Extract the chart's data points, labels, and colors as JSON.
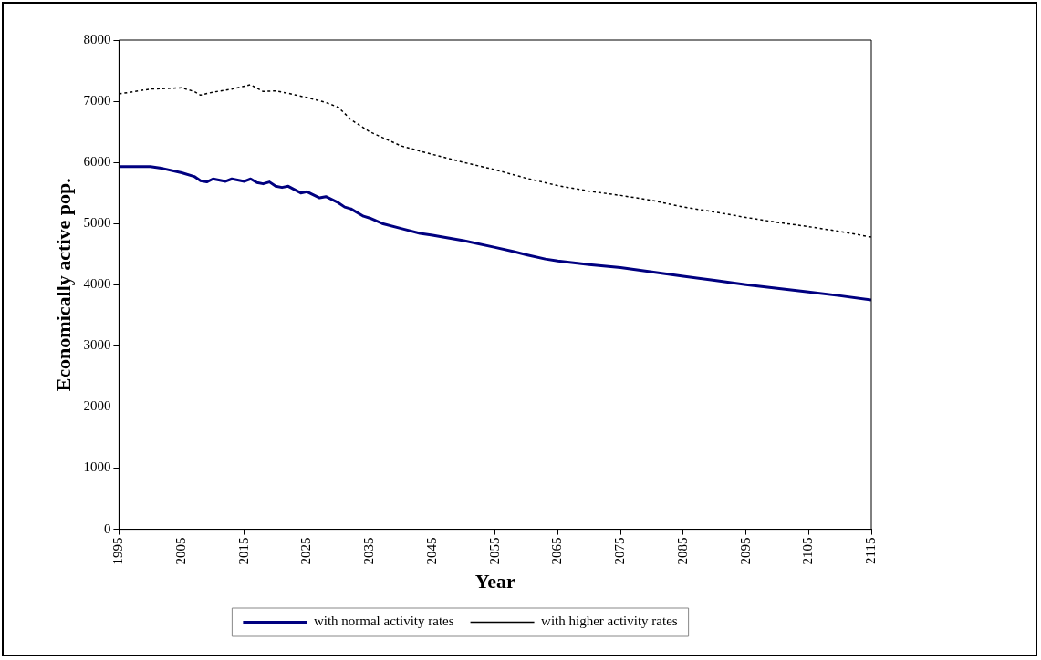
{
  "chart_data": {
    "type": "line",
    "xlabel": "Year",
    "ylabel": "Economically active pop.",
    "xlim": [
      1995,
      2115
    ],
    "xticks": [
      1995,
      2005,
      2015,
      2025,
      2035,
      2045,
      2055,
      2065,
      2075,
      2085,
      2095,
      2105,
      2115
    ],
    "ylim": [
      0,
      8000
    ],
    "yticks": [
      0,
      1000,
      2000,
      3000,
      4000,
      5000,
      6000,
      7000,
      8000
    ],
    "grid": false,
    "legend": "bottom",
    "marker": "none",
    "series": [
      {
        "name": "with normal activity rates",
        "color": "#000080",
        "line_style": "solid",
        "x": [
          1995,
          2000,
          2002,
          2005,
          2007,
          2008,
          2009,
          2010,
          2012,
          2013,
          2015,
          2016,
          2017,
          2018,
          2019,
          2020,
          2021,
          2022,
          2024,
          2025,
          2027,
          2028,
          2030,
          2031,
          2032,
          2034,
          2035,
          2037,
          2040,
          2043,
          2045,
          2050,
          2055,
          2058,
          2060,
          2063,
          2065,
          2070,
          2075,
          2080,
          2085,
          2090,
          2095,
          2100,
          2105,
          2110,
          2115
        ],
        "values": [
          5930,
          5930,
          5900,
          5830,
          5770,
          5700,
          5680,
          5730,
          5690,
          5730,
          5690,
          5730,
          5670,
          5650,
          5680,
          5610,
          5590,
          5610,
          5500,
          5520,
          5420,
          5440,
          5340,
          5270,
          5240,
          5120,
          5090,
          5000,
          4920,
          4840,
          4810,
          4720,
          4610,
          4540,
          4490,
          4420,
          4390,
          4330,
          4280,
          4210,
          4140,
          4070,
          4000,
          3940,
          3880,
          3820,
          3750
        ]
      },
      {
        "name": "with higher activity rates",
        "color": "#000000",
        "line_style": "dotted",
        "x": [
          1995,
          2000,
          2005,
          2007,
          2008,
          2010,
          2013,
          2016,
          2018,
          2020,
          2022,
          2025,
          2028,
          2030,
          2032,
          2035,
          2040,
          2045,
          2050,
          2055,
          2060,
          2065,
          2070,
          2075,
          2080,
          2085,
          2090,
          2095,
          2100,
          2105,
          2110,
          2115
        ],
        "values": [
          7120,
          7200,
          7220,
          7160,
          7100,
          7150,
          7200,
          7270,
          7160,
          7170,
          7130,
          7060,
          6980,
          6900,
          6700,
          6500,
          6270,
          6130,
          6000,
          5880,
          5740,
          5620,
          5530,
          5460,
          5380,
          5270,
          5190,
          5100,
          5020,
          4950,
          4870,
          4780
        ]
      }
    ]
  }
}
